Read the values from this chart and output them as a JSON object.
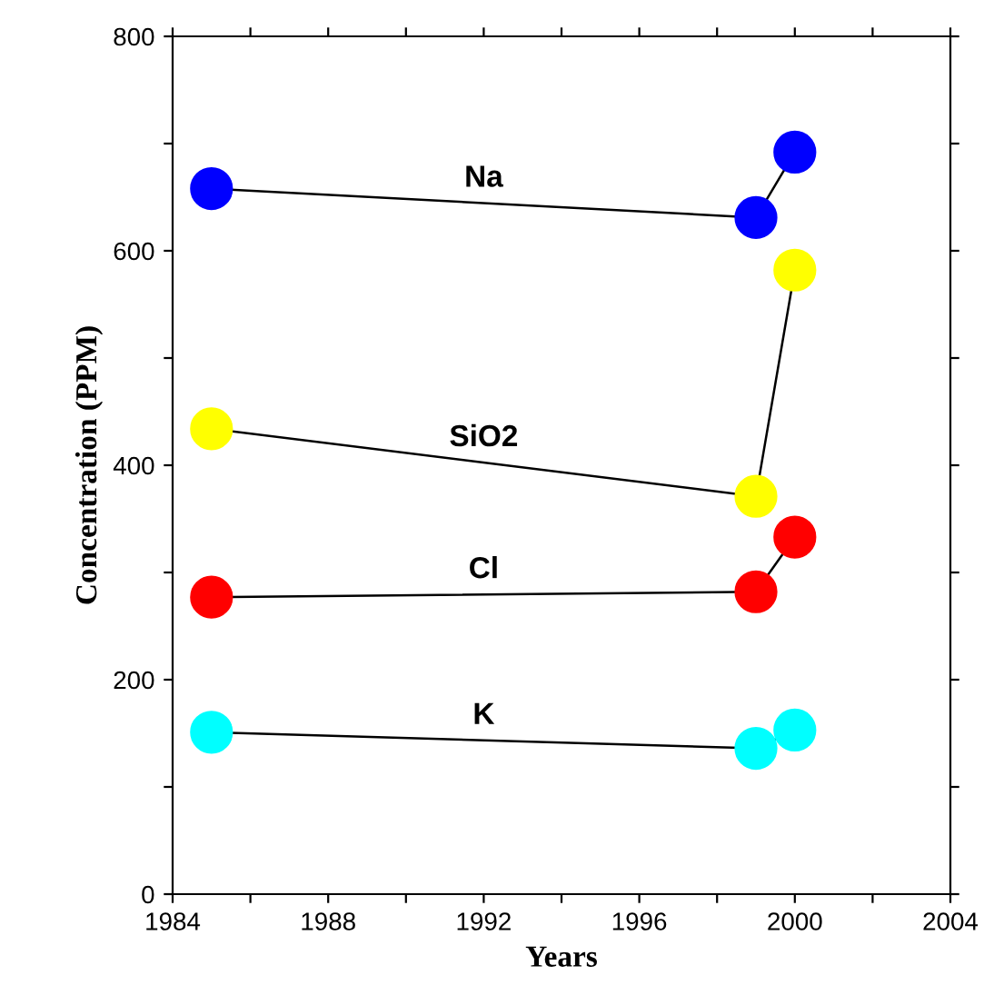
{
  "chart_data": {
    "type": "line",
    "xlabel": "Years",
    "ylabel": "Concentration (PPM)",
    "x": [
      1985,
      1999,
      2000
    ],
    "series": [
      {
        "name": "Na",
        "color": "#0000ff",
        "values": [
          658,
          631,
          692
        ]
      },
      {
        "name": "SiO2",
        "color": "#ffff00",
        "values": [
          434,
          371,
          582
        ]
      },
      {
        "name": "Cl",
        "color": "#ff0000",
        "values": [
          277,
          282,
          333
        ]
      },
      {
        "name": "K",
        "color": "#00ffff",
        "values": [
          151,
          136,
          153
        ]
      }
    ],
    "xlim": [
      1984,
      2004
    ],
    "xticks": [
      1984,
      {
        "value": 1986,
        "label": null
      },
      1988,
      {
        "value": 1990,
        "label": null
      },
      1992,
      {
        "value": 1994,
        "label": null
      },
      1996,
      {
        "value": 1998,
        "label": null
      },
      2000,
      {
        "value": 2002,
        "label": null
      },
      2004
    ],
    "ylim": [
      0,
      800
    ],
    "yticks": [
      0,
      {
        "value": 100,
        "label": null
      },
      200,
      {
        "value": 300,
        "label": null
      },
      400,
      {
        "value": 500,
        "label": null
      },
      600,
      {
        "value": 700,
        "label": null
      },
      800
    ],
    "grid": false,
    "legend": false,
    "marker": "circle",
    "line_style": "solid"
  }
}
